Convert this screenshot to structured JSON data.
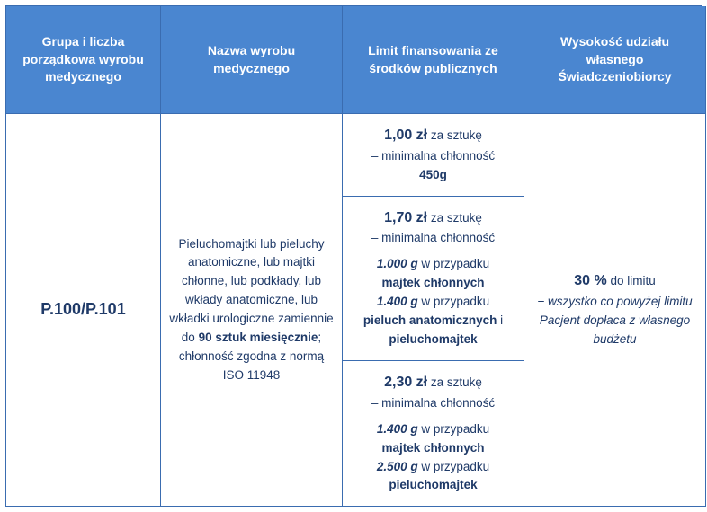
{
  "colors": {
    "header_bg": "#4a86d0",
    "border": "#3a6cb0",
    "text": "#1f3a68",
    "header_text": "#ffffff",
    "background": "#ffffff"
  },
  "headers": {
    "h1": "Grupa i liczba porządkowa wyrobu medycznego",
    "h2": "Nazwa wyrobu medycznego",
    "h3": "Limit finansowania ze środków publicznych",
    "h4": "Wysokość udziału własnego Świadczeniobiorcy"
  },
  "row": {
    "code": "P.100/P.101",
    "desc": {
      "p1": "Pieluchomajtki lub pieluchy anatomiczne, lub majtki chłonne, lub podkłady, lub wkłady anatomiczne, lub wkładki urologiczne zamiennie do",
      "p1b": "90 sztuk miesięcznie",
      "p1sep": ";",
      "p2": "chłonność zgodna z normą ISO 11948"
    },
    "limits": {
      "l1": {
        "price": "1,00 zł",
        "per": " za sztukę",
        "min": "– minimalna chłonność",
        "g": "450g"
      },
      "l2": {
        "price": "1,70 zł",
        "per": " za sztukę",
        "min": "– minimalna chłonność",
        "g1": "1.000 g",
        "txt1": " w przypadku",
        "cat1": "majtek chłonnych",
        "g2": "1.400 g",
        "txt2": " w przypadku",
        "cat2a": "pieluch anatomicznych",
        "and": " i",
        "cat2b": "pieluchomajtek"
      },
      "l3": {
        "price": "2,30 zł",
        "per": " za sztukę",
        "min": "– minimalna chłonność",
        "g1": "1.400 g",
        "txt1": " w przypadku",
        "cat1": "majtek chłonnych",
        "g2": "2.500 g",
        "txt2": " w przypadku",
        "cat2": "pieluchomajtek"
      }
    },
    "share": {
      "pct": "30 %",
      "pct_txt": " do limitu",
      "note": "+ wszystko co powyżej limitu Pacjent dopłaca z własnego budżetu"
    }
  }
}
